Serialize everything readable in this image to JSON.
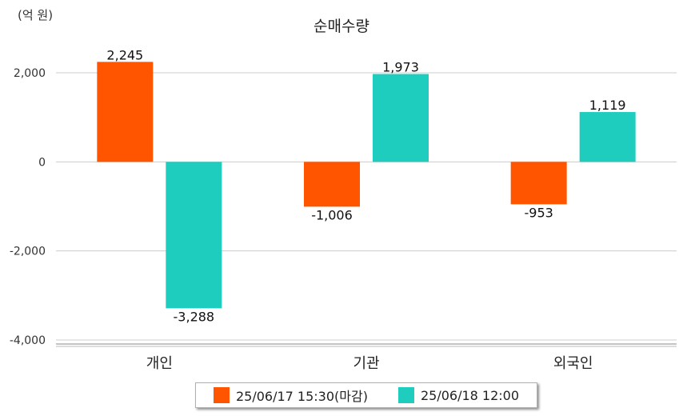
{
  "chart_data": {
    "type": "bar",
    "title": "순매수량",
    "unit_label": "(억 원)",
    "categories": [
      "개인",
      "기관",
      "외국인"
    ],
    "series": [
      {
        "name": "25/06/17 15:30(마감)",
        "color": "#ff5500",
        "values": [
          2245,
          -1006,
          -953
        ],
        "labels": [
          "2,245",
          "-1,006",
          "-953"
        ]
      },
      {
        "name": "25/06/18 12:00",
        "color": "#1ecdbd",
        "values": [
          -3288,
          1973,
          1119
        ],
        "labels": [
          "-3,288",
          "1,973",
          "1,119"
        ]
      }
    ],
    "ylim": [
      -4000,
      2000
    ],
    "yticks": [
      2000,
      0,
      -2000,
      -4000
    ],
    "ytick_labels": [
      "2,000",
      "0",
      "-2,000",
      "-4,000"
    ],
    "grid": true,
    "legend_position": "bottom"
  }
}
